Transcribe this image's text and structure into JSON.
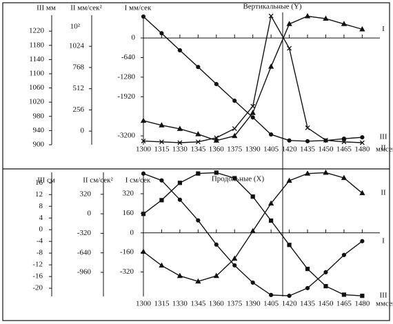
{
  "chart_data": [
    {
      "type": "line",
      "title": "Вертикальные (Y)",
      "xlabel": "ммсек",
      "x": [
        1300,
        1315,
        1330,
        1345,
        1360,
        1375,
        1390,
        1405,
        1420,
        1435,
        1450,
        1465,
        1480
      ],
      "xlim": [
        1300,
        1490
      ],
      "xticks": [
        1300,
        1315,
        1330,
        1345,
        1360,
        1375,
        1390,
        1405,
        1420,
        1435,
        1450,
        1465,
        1480
      ],
      "ylabel": "I мм/сек",
      "ylim": [
        -3490,
        745
      ],
      "yticks": [
        0,
        -640,
        -1280,
        -1920,
        -3200
      ],
      "y2label": "II мм/сек²",
      "y2multiplier": "10²",
      "y2lim": [
        -165,
        1400
      ],
      "y2ticks": [
        1024,
        768,
        512,
        256,
        0
      ],
      "y3label": "III мм",
      "y3lim": [
        900,
        1265
      ],
      "y3ticks": [
        1220,
        1180,
        1140,
        1100,
        1060,
        1020,
        980,
        940,
        900
      ],
      "series": [
        {
          "name": "I",
          "marker": "triangle",
          "color": "#111111",
          "axis": "y",
          "values": [
            -2704,
            -2853,
            -2970,
            -3144,
            -3353,
            -3202,
            -2447,
            -937,
            457,
            712,
            631,
            457,
            284
          ]
        },
        {
          "name": "II",
          "marker": "cross",
          "color": "#111111",
          "axis": "y2",
          "values": [
            -120,
            -130,
            -140,
            -130,
            -80,
            30,
            300,
            1390,
            1000,
            40,
            -110,
            -130,
            -140
          ]
        },
        {
          "name": "III",
          "marker": "circle",
          "color": "#111111",
          "axis": "y3",
          "values": [
            1261,
            1214,
            1166,
            1119,
            1071,
            1024,
            977,
            929,
            912,
            910,
            912,
            917,
            921
          ]
        }
      ]
    },
    {
      "type": "line",
      "title": "Продольные (X)",
      "xlabel": "ммсек",
      "x": [
        1300,
        1315,
        1330,
        1345,
        1360,
        1375,
        1390,
        1405,
        1420,
        1435,
        1450,
        1465,
        1480
      ],
      "xlim": [
        1300,
        1490
      ],
      "xticks": [
        1300,
        1315,
        1330,
        1345,
        1360,
        1375,
        1390,
        1405,
        1420,
        1435,
        1450,
        1465,
        1480
      ],
      "ylabel": "I см/сек",
      "ylim": [
        -520,
        495
      ],
      "yticks": [
        320,
        160,
        0,
        -160,
        -320
      ],
      "y2label": "II см/сек²",
      "y2lim": [
        -1355,
        680
      ],
      "y2ticks": [
        320,
        0,
        -320,
        -640,
        -960
      ],
      "y3label": "III см",
      "y3lim": [
        -22.8,
        19.6
      ],
      "y3ticks": [
        16,
        12,
        8,
        4,
        0,
        -4,
        -8,
        -12,
        -16,
        -20
      ],
      "series": [
        {
          "name": "I",
          "marker": "circle",
          "color": "#111111",
          "axis": "y",
          "values": [
            485,
            429,
            271,
            102,
            -96,
            -266,
            -407,
            -508,
            -515,
            -452,
            -322,
            -181,
            -68
          ]
        },
        {
          "name": "II",
          "marker": "triangle",
          "color": "#111111",
          "axis": "y2",
          "values": [
            -622,
            -848,
            -1018,
            -1109,
            -1018,
            -735,
            -283,
            170,
            543,
            660,
            675,
            588,
            339
          ]
        },
        {
          "name": "III",
          "marker": "square",
          "color": "#111111",
          "axis": "y3",
          "values": [
            5.4,
            10.1,
            16,
            19.2,
            19.5,
            17.6,
            11.3,
            3.1,
            -5.2,
            -13.4,
            -19.3,
            -22.2,
            -22.6
          ]
        }
      ]
    }
  ]
}
